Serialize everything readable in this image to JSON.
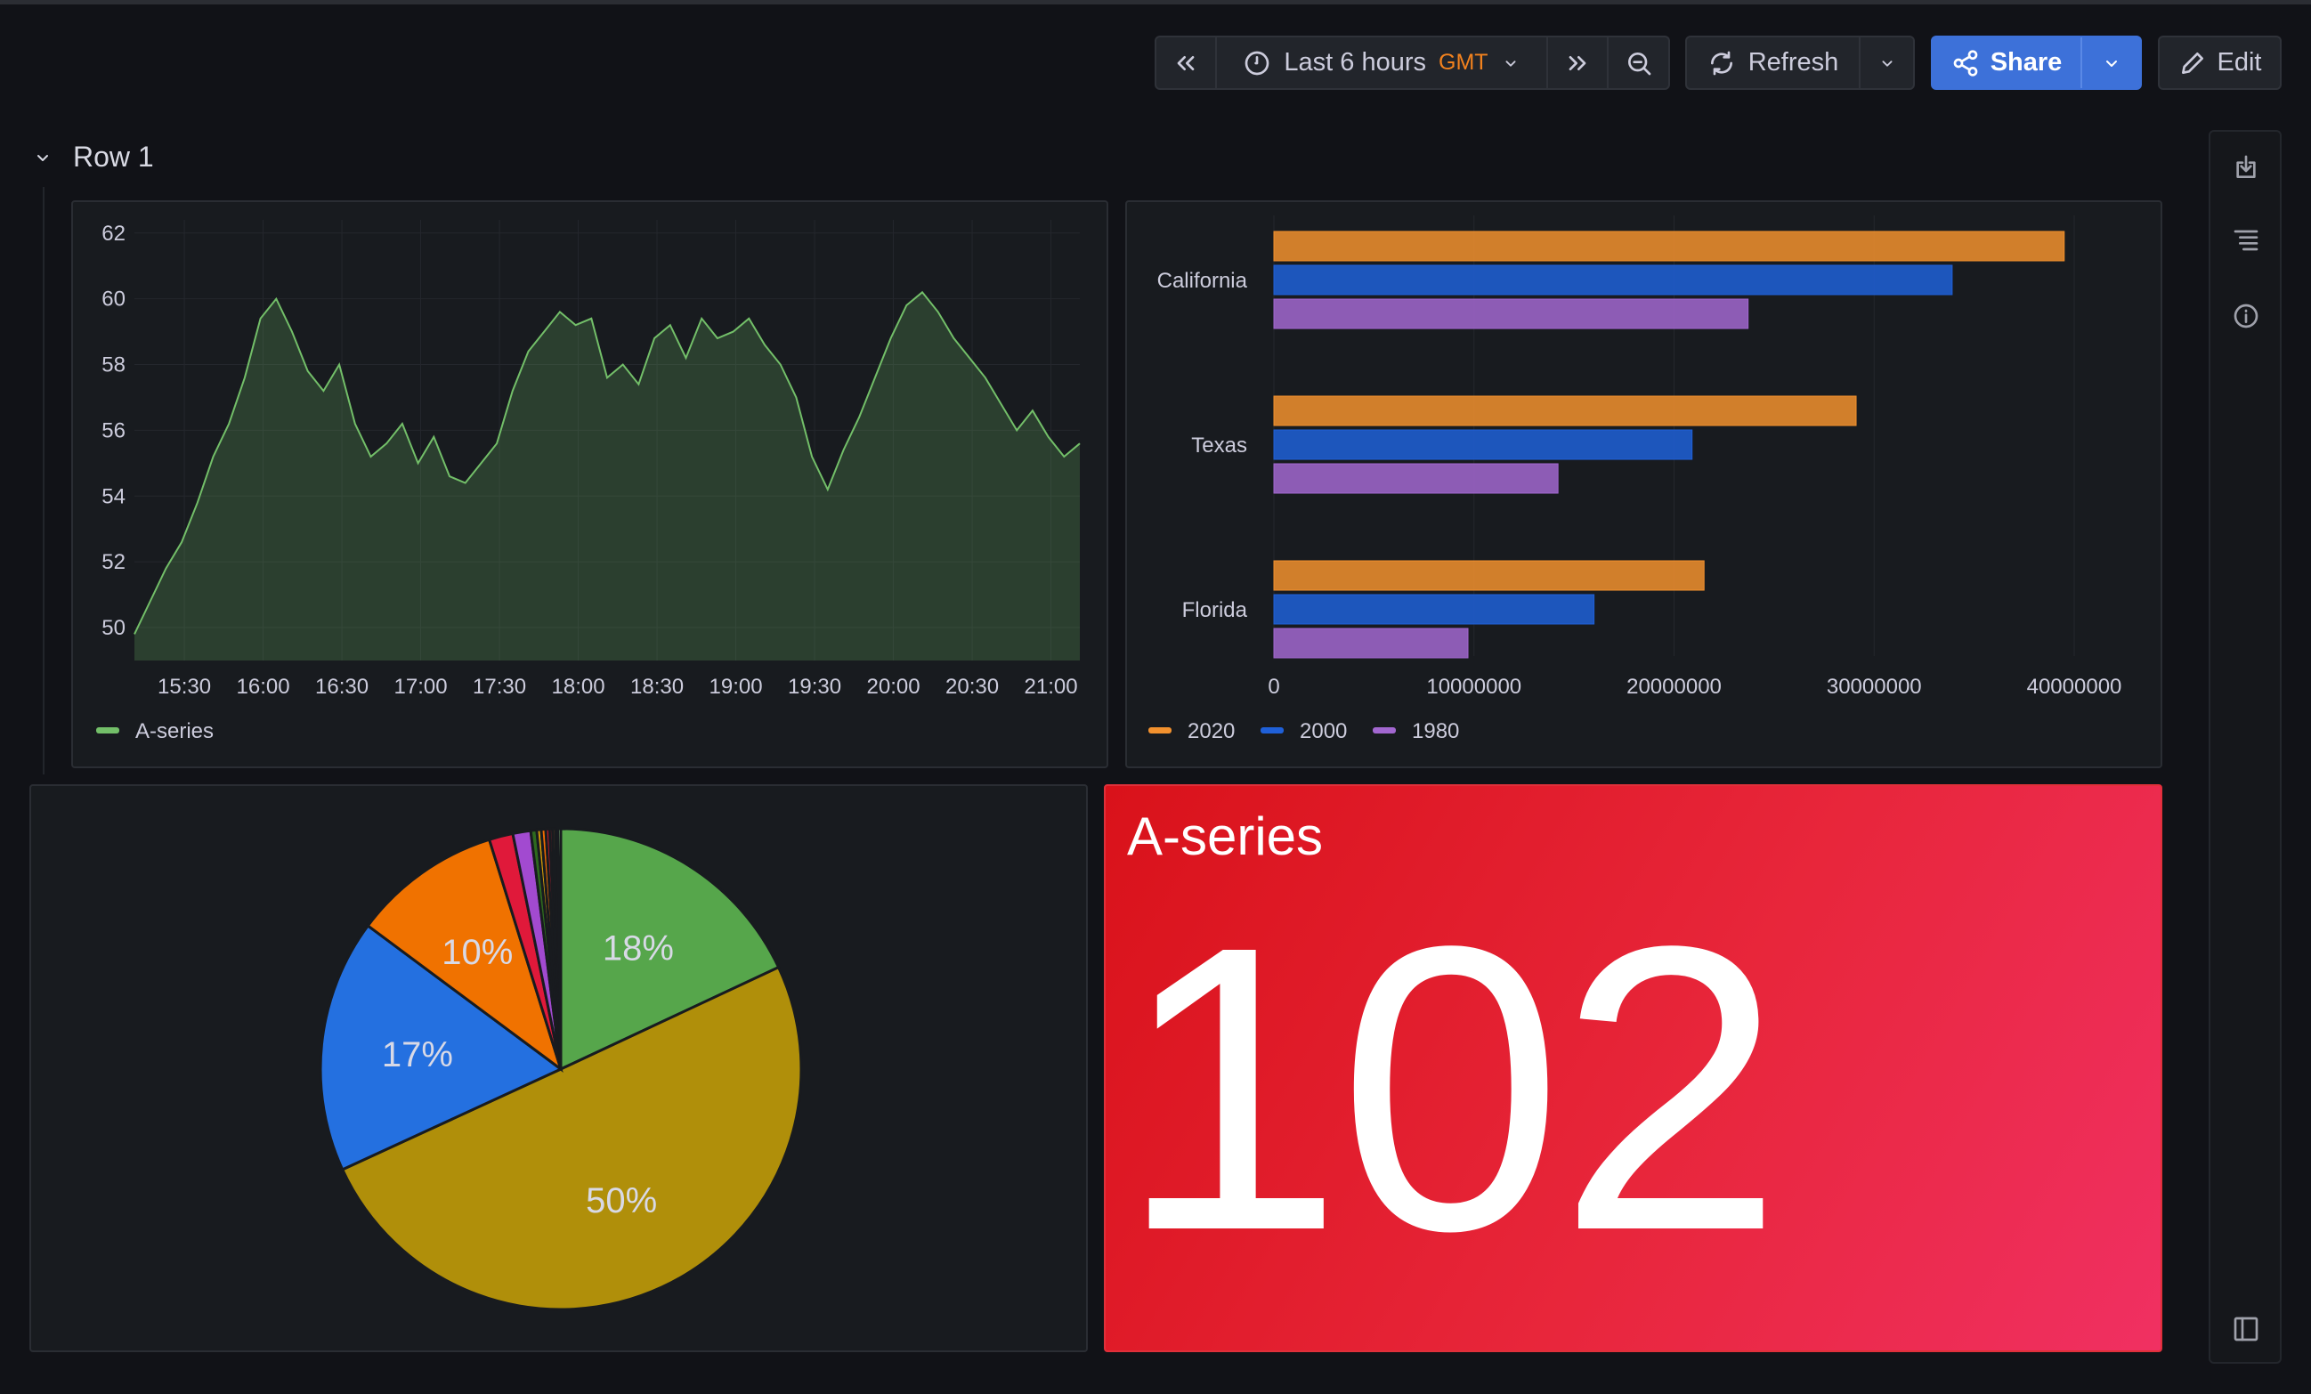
{
  "toolbar": {
    "time_range": "Last 6 hours",
    "timezone": "GMT",
    "refresh_label": "Refresh",
    "share_label": "Share",
    "edit_label": "Edit"
  },
  "row": {
    "title": "Row 1"
  },
  "sidebar": {
    "icons": [
      "download-icon",
      "list-icon",
      "info-icon",
      "panel-toggle-icon"
    ]
  },
  "chart_data": [
    {
      "type": "area",
      "title": "",
      "legend": [
        "A-series"
      ],
      "series_name": "A-series",
      "color": "#73bf69",
      "y_ticks": [
        "50",
        "52",
        "54",
        "56",
        "58",
        "60",
        "62"
      ],
      "ylim": [
        49,
        62.4
      ],
      "x_ticks": [
        "15:30",
        "16:00",
        "16:30",
        "17:00",
        "17:30",
        "18:00",
        "18:30",
        "19:00",
        "19:30",
        "20:00",
        "20:30",
        "21:00"
      ],
      "x_start": "15:11",
      "x_end": "21:11",
      "step_minutes": 6,
      "values": [
        49.8,
        50.8,
        51.8,
        52.6,
        53.8,
        55.2,
        56.2,
        57.6,
        59.4,
        60.0,
        59.0,
        57.8,
        57.2,
        58.0,
        56.2,
        55.2,
        55.6,
        56.2,
        55.0,
        55.8,
        54.6,
        54.4,
        55.0,
        55.6,
        57.2,
        58.4,
        59.0,
        59.6,
        59.2,
        59.4,
        57.6,
        58.0,
        57.4,
        58.8,
        59.2,
        58.2,
        59.4,
        58.8,
        59.0,
        59.4,
        58.6,
        58.0,
        57.0,
        55.2,
        54.2,
        55.4,
        56.4,
        57.6,
        58.8,
        59.8,
        60.2,
        59.6,
        58.8,
        58.2,
        57.6,
        56.8,
        56.0,
        56.6,
        55.8,
        55.2,
        55.6
      ]
    },
    {
      "type": "bar",
      "orientation": "horizontal",
      "categories": [
        "California",
        "Texas",
        "Florida"
      ],
      "series": [
        {
          "name": "2020",
          "color": "#f2912e",
          "values": [
            39500000,
            29100000,
            21500000
          ]
        },
        {
          "name": "2000",
          "color": "#1f60d8",
          "values": [
            33900000,
            20900000,
            16000000
          ]
        },
        {
          "name": "1980",
          "color": "#a267d0",
          "values": [
            23700000,
            14200000,
            9700000
          ]
        }
      ],
      "x_ticks": [
        "0",
        "10000000",
        "20000000",
        "30000000",
        "40000000"
      ],
      "xlim": [
        0,
        42700000
      ]
    },
    {
      "type": "pie",
      "slices": [
        {
          "value": 18,
          "label": "18%",
          "color": "#56a64b"
        },
        {
          "value": 50,
          "label": "50%",
          "color": "#b08f0a"
        },
        {
          "value": 17,
          "label": "17%",
          "color": "#2470e0"
        },
        {
          "value": 10,
          "label": "10%",
          "color": "#f07200"
        },
        {
          "value": 1.6,
          "label": "",
          "color": "#e0193a"
        },
        {
          "value": 1.2,
          "label": "",
          "color": "#a24ad0"
        },
        {
          "value": 0.4,
          "label": "",
          "color": "#2e6a1e"
        },
        {
          "value": 0.3,
          "label": "",
          "color": "#d29a08"
        },
        {
          "value": 0.3,
          "label": "",
          "color": "#f06b00"
        },
        {
          "value": 0.25,
          "label": "",
          "color": "#c41a30"
        },
        {
          "value": 0.2,
          "label": "",
          "color": "#8a1e28"
        },
        {
          "value": 0.2,
          "label": "",
          "color": "#6a4a20"
        },
        {
          "value": 0.15,
          "label": "",
          "color": "#3a3020"
        },
        {
          "value": 0.2,
          "label": "",
          "color": "#96d98d"
        }
      ]
    }
  ],
  "stat": {
    "title": "A-series",
    "value": "102"
  }
}
